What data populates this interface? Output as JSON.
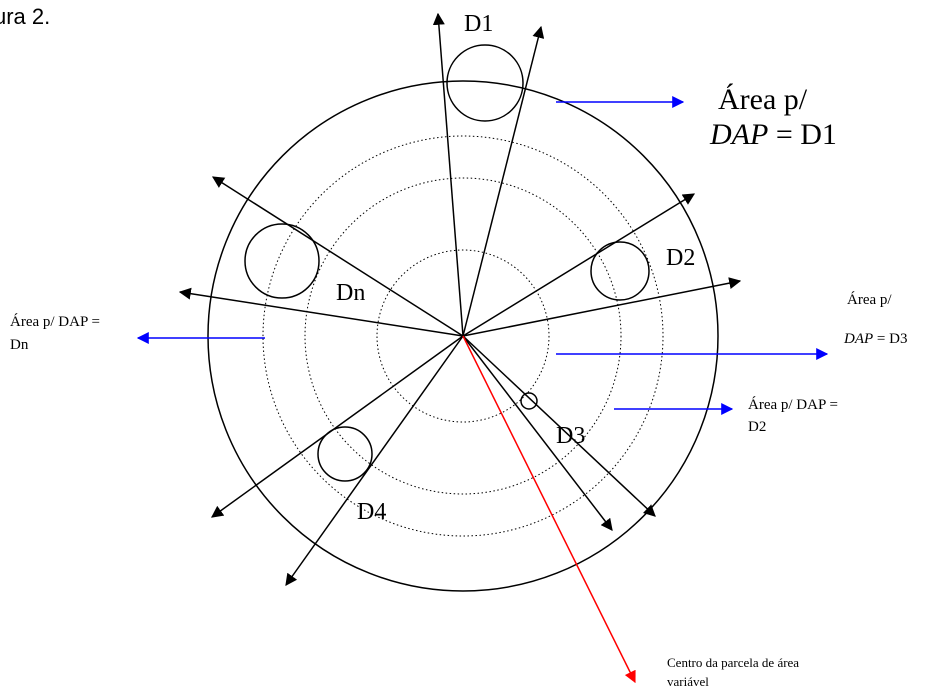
{
  "figure": {
    "caption": "ura 2."
  },
  "diameter_labels": {
    "d1": "D1",
    "d2": "D2",
    "d3": "D3",
    "d4": "D4",
    "dn": "Dn"
  },
  "callouts": {
    "d1": {
      "line1": "Área p/",
      "line2_var": "DAP",
      "line2_rest": " = D1"
    },
    "d3": {
      "line1": "Área p/",
      "line2_var": "DAP",
      "line2_rest": " = D3"
    },
    "d2": {
      "line1": "Área p/ DAP =",
      "line2": "D2"
    },
    "dn": {
      "line1": "Área p/ DAP =",
      "line2": "Dn"
    },
    "center": {
      "line1": "Centro da parcela de área",
      "line2": "variável"
    }
  },
  "colors": {
    "callout_arrow": "#0000ff",
    "center_arrow": "#ff0000",
    "stroke": "#000000"
  }
}
